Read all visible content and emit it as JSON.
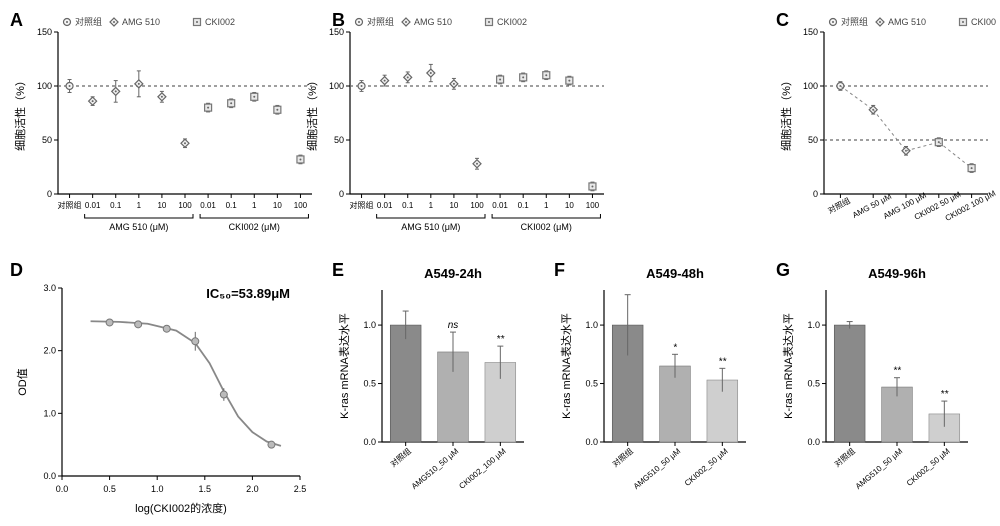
{
  "panels": {
    "A": {
      "label": "A"
    },
    "B": {
      "label": "B"
    },
    "C": {
      "label": "C"
    },
    "D": {
      "label": "D"
    },
    "E": {
      "label": "E"
    },
    "F": {
      "label": "F"
    },
    "G": {
      "label": "G"
    }
  },
  "legend_ABC": {
    "items": [
      {
        "label": "对照组",
        "marker": "circle-dot"
      },
      {
        "label": "AMG 510",
        "marker": "diamond"
      },
      {
        "label": "CKI002",
        "marker": "square-dot"
      }
    ]
  },
  "chartABC_common": {
    "ylabel": "细胞活性（%）",
    "yticks": [
      0,
      50,
      100,
      150
    ],
    "ylim": [
      0,
      150
    ],
    "hline": 100,
    "axis_color": "#000000",
    "grid_off": true,
    "label_fontsize": 11,
    "tick_fontsize": 9
  },
  "chartA": {
    "type": "scatter",
    "xcats": [
      "对照组",
      "0.01",
      "0.1",
      "1",
      "10",
      "100",
      "0.01",
      "0.1",
      "1",
      "10",
      "100"
    ],
    "group_brackets": [
      {
        "label": "AMG 510 (μM)",
        "from": 1,
        "to": 5
      },
      {
        "label": "CKI002 (μM)",
        "from": 6,
        "to": 10
      }
    ],
    "series": [
      {
        "name": "对照组",
        "marker": "circle-dot",
        "vals": [
          100,
          null,
          null,
          null,
          null,
          null,
          null,
          null,
          null,
          null,
          null
        ],
        "err": [
          6,
          null,
          null,
          null,
          null,
          null,
          null,
          null,
          null,
          null,
          null
        ]
      },
      {
        "name": "AMG 510",
        "marker": "diamond",
        "vals": [
          null,
          86,
          95,
          102,
          90,
          47,
          null,
          null,
          null,
          null,
          null
        ],
        "err": [
          null,
          4,
          10,
          12,
          5,
          4,
          null,
          null,
          null,
          null,
          null
        ]
      },
      {
        "name": "CKI002",
        "marker": "square-dot",
        "vals": [
          null,
          null,
          null,
          null,
          null,
          null,
          80,
          84,
          90,
          78,
          32
        ],
        "err": [
          null,
          null,
          null,
          null,
          null,
          null,
          4,
          4,
          4,
          4,
          4
        ]
      }
    ]
  },
  "chartB": {
    "type": "scatter",
    "xcats": [
      "对照组",
      "0.01",
      "0.1",
      "1",
      "10",
      "100",
      "0.01",
      "0.1",
      "1",
      "10",
      "100"
    ],
    "group_brackets": [
      {
        "label": "AMG 510 (μM)",
        "from": 1,
        "to": 5
      },
      {
        "label": "CKI002 (μM)",
        "from": 6,
        "to": 10
      }
    ],
    "series": [
      {
        "name": "对照组",
        "marker": "circle-dot",
        "vals": [
          100,
          null,
          null,
          null,
          null,
          null,
          null,
          null,
          null,
          null,
          null
        ],
        "err": [
          5,
          null,
          null,
          null,
          null,
          null,
          null,
          null,
          null,
          null,
          null
        ]
      },
      {
        "name": "AMG 510",
        "marker": "diamond",
        "vals": [
          null,
          105,
          108,
          112,
          102,
          28,
          null,
          null,
          null,
          null,
          null
        ],
        "err": [
          null,
          5,
          5,
          8,
          5,
          5,
          null,
          null,
          null,
          null,
          null
        ]
      },
      {
        "name": "CKI002",
        "marker": "square-dot",
        "vals": [
          null,
          null,
          null,
          null,
          null,
          null,
          106,
          108,
          110,
          105,
          7
        ],
        "err": [
          null,
          null,
          null,
          null,
          null,
          null,
          4,
          4,
          4,
          4,
          4
        ]
      }
    ]
  },
  "chartC": {
    "type": "scatter",
    "xcats": [
      "对照组",
      "AMG 50 μM",
      "AMG 100 μM",
      "CKI002 50 μM",
      "CKI002 100 μM"
    ],
    "connect": true,
    "hlines": [
      100,
      50
    ],
    "series": [
      {
        "name": "all",
        "marker_seq": [
          "circle-dot",
          "diamond",
          "diamond",
          "square-dot",
          "square-dot"
        ],
        "vals": [
          100,
          78,
          40,
          48,
          24
        ],
        "err": [
          4,
          4,
          4,
          4,
          4
        ]
      }
    ]
  },
  "chartD": {
    "type": "dose-response",
    "title": "IC₅₀=53.89μM",
    "xlabel": "log(CKI002的浓度)",
    "ylabel": "OD值",
    "xticks": [
      0.0,
      0.5,
      1.0,
      1.5,
      2.0,
      2.5
    ],
    "yticks": [
      0.0,
      1.0,
      2.0,
      3.0
    ],
    "xlim": [
      0.0,
      2.5
    ],
    "ylim": [
      0.0,
      3.0
    ],
    "points": [
      {
        "x": 0.5,
        "y": 2.45,
        "err": 0.05
      },
      {
        "x": 0.8,
        "y": 2.42,
        "err": 0.05
      },
      {
        "x": 1.1,
        "y": 2.35,
        "err": 0.05
      },
      {
        "x": 1.4,
        "y": 2.15,
        "err": 0.15
      },
      {
        "x": 1.7,
        "y": 1.3,
        "err": 0.1
      },
      {
        "x": 2.2,
        "y": 0.5,
        "err": 0.05
      }
    ],
    "fit_curve": [
      {
        "x": 0.3,
        "y": 2.47
      },
      {
        "x": 0.6,
        "y": 2.46
      },
      {
        "x": 0.9,
        "y": 2.43
      },
      {
        "x": 1.2,
        "y": 2.32
      },
      {
        "x": 1.4,
        "y": 2.12
      },
      {
        "x": 1.55,
        "y": 1.8
      },
      {
        "x": 1.7,
        "y": 1.35
      },
      {
        "x": 1.85,
        "y": 0.95
      },
      {
        "x": 2.0,
        "y": 0.7
      },
      {
        "x": 2.15,
        "y": 0.55
      },
      {
        "x": 2.3,
        "y": 0.48
      }
    ],
    "marker": "circle",
    "marker_color": "#aaaaaa",
    "fit_color": "#888888"
  },
  "barCommon": {
    "type": "bar",
    "ylabel": "K-ras mRNA表达水平",
    "ylim": [
      0.0,
      1.3
    ],
    "yticks": [
      0.0,
      0.5,
      1.0
    ],
    "bar_width": 0.65,
    "colors": [
      "#8a8a8a",
      "#b0b0b0",
      "#cfcfcf"
    ]
  },
  "chartE": {
    "title": "A549-24h",
    "xcats": [
      "对照组",
      "AMG510_50 μM",
      "CKI002_100 μM"
    ],
    "vals": [
      1.0,
      0.77,
      0.68
    ],
    "err": [
      0.12,
      0.17,
      0.14
    ],
    "sig": [
      "",
      "ns",
      "**"
    ]
  },
  "chartF": {
    "title": "A549-48h",
    "xcats": [
      "对照组",
      "AMG510_50 μM",
      "CKI002_50 μM"
    ],
    "vals": [
      1.0,
      0.65,
      0.53
    ],
    "err": [
      0.26,
      0.1,
      0.1
    ],
    "sig": [
      "",
      "*",
      "**"
    ]
  },
  "chartG": {
    "title": "A549-96h",
    "xcats": [
      "对照组",
      "AMG510_50 μM",
      "CKI002_50 μM"
    ],
    "vals": [
      1.0,
      0.47,
      0.24
    ],
    "err": [
      0.03,
      0.08,
      0.11
    ],
    "sig": [
      "",
      "**",
      "**"
    ]
  }
}
